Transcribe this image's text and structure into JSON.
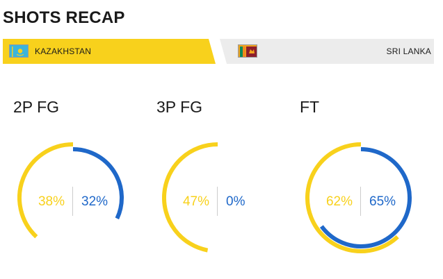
{
  "header": {
    "title": "SHOTS RECAP"
  },
  "teams": {
    "home": {
      "name": "KAZAKHSTAN",
      "flag_icon": "kazakhstan-flag-icon",
      "color": "#f8d11c"
    },
    "away": {
      "name": "SRI LANKA",
      "flag_icon": "sri-lanka-flag-icon",
      "color": "#1f68c9"
    }
  },
  "stats": [
    {
      "label": "2P FG",
      "home_pct": 38,
      "away_pct": 32,
      "home_text": "38%",
      "away_text": "32%"
    },
    {
      "label": "3P FG",
      "home_pct": 47,
      "away_pct": 0,
      "home_text": "47%",
      "away_text": "0%"
    },
    {
      "label": "FT",
      "home_pct": 62,
      "away_pct": 65,
      "home_text": "62%",
      "away_text": "65%"
    }
  ]
}
